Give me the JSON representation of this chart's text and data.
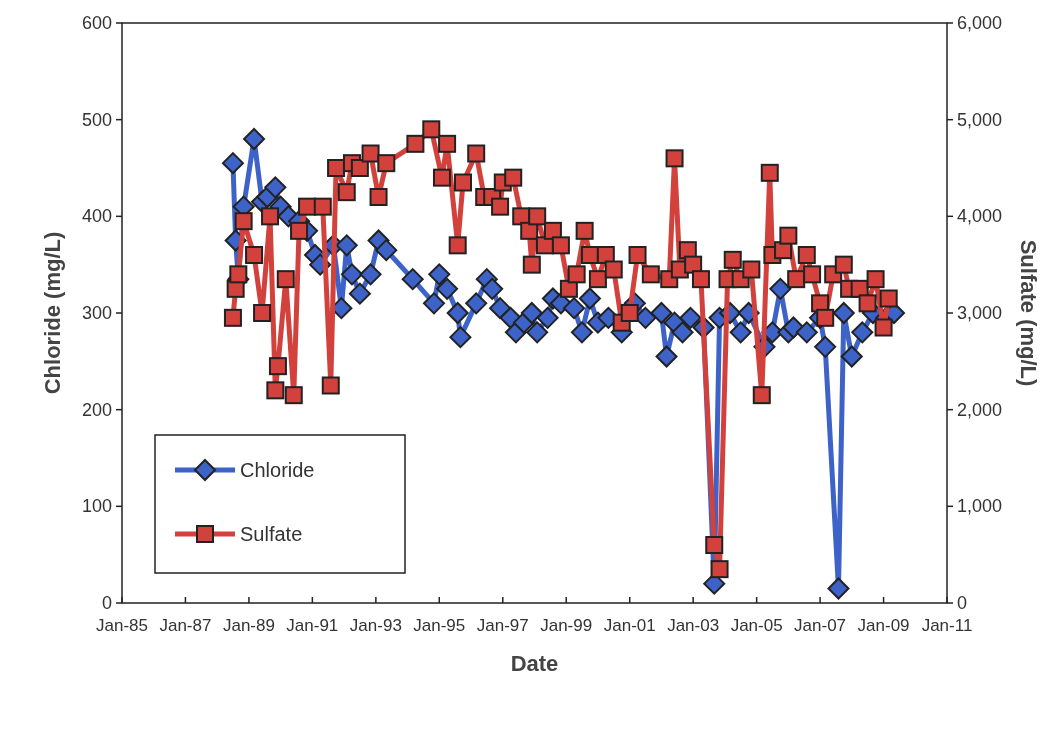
{
  "chart_data": {
    "type": "line",
    "xlabel": "Date",
    "ylabel": "Chloride (mg/L)",
    "y2label": "Sulfate (mg/L)",
    "xlim": [
      "1985-01",
      "2011-01"
    ],
    "xticks": [
      {
        "value": "1985-01",
        "label": "Jan-85"
      },
      {
        "value": "1987-01",
        "label": "Jan-87"
      },
      {
        "value": "1989-01",
        "label": "Jan-89"
      },
      {
        "value": "1991-01",
        "label": "Jan-91"
      },
      {
        "value": "1993-01",
        "label": "Jan-93"
      },
      {
        "value": "1995-01",
        "label": "Jan-95"
      },
      {
        "value": "1997-01",
        "label": "Jan-97"
      },
      {
        "value": "1999-01",
        "label": "Jan-99"
      },
      {
        "value": "2001-01",
        "label": "Jan-01"
      },
      {
        "value": "2003-01",
        "label": "Jan-03"
      },
      {
        "value": "2005-01",
        "label": "Jan-05"
      },
      {
        "value": "2007-01",
        "label": "Jan-07"
      },
      {
        "value": "2009-01",
        "label": "Jan-09"
      },
      {
        "value": "2011-01",
        "label": "Jan-11"
      }
    ],
    "ylim": [
      0,
      600
    ],
    "yticks": [
      0,
      100,
      200,
      300,
      400,
      500,
      600
    ],
    "y2lim": [
      0,
      6000
    ],
    "y2ticks": [
      0,
      {
        "value": 1000,
        "label": "1,000"
      },
      {
        "value": 2000,
        "label": "2,000"
      },
      {
        "value": 3000,
        "label": "3,000"
      },
      {
        "value": 4000,
        "label": "4,000"
      },
      {
        "value": 5000,
        "label": "5,000"
      },
      {
        "value": 6000,
        "label": "6,000"
      }
    ],
    "grid": false,
    "legend": "bottom left",
    "line_style": "solid",
    "series": [
      {
        "name": "Chloride",
        "color": "#3d62c8",
        "marker": "diamond",
        "x": [
          "1988-07",
          "1988-08",
          "1988-09",
          "1988-11",
          "1989-03",
          "1989-06",
          "1989-08",
          "1989-11",
          "1990-01",
          "1990-04",
          "1990-08",
          "1990-11",
          "1991-02",
          "1991-04",
          "1991-09",
          "1991-12",
          "1992-02",
          "1992-04",
          "1992-07",
          "1992-11",
          "1993-02",
          "1993-05",
          "1994-03",
          "1994-11",
          "1995-01",
          "1995-04",
          "1995-08",
          "1995-09",
          "1996-03",
          "1996-07",
          "1996-09",
          "1996-12",
          "1997-04",
          "1997-06",
          "1997-09",
          "1997-12",
          "1998-02",
          "1998-06",
          "1998-08",
          "1998-11",
          "1999-04",
          "1999-07",
          "1999-10",
          "2000-01",
          "2000-05",
          "2000-10",
          "2001-03",
          "2001-07",
          "2002-01",
          "2002-03",
          "2002-06",
          "2002-09",
          "2002-12",
          "2003-05",
          "2003-09",
          "2003-11",
          "2004-03",
          "2004-07",
          "2004-10",
          "2005-04",
          "2005-07",
          "2005-10",
          "2006-01",
          "2006-03",
          "2006-08",
          "2007-01",
          "2007-03",
          "2007-08",
          "2007-10",
          "2008-01",
          "2008-05",
          "2008-09",
          "2009-02",
          "2009-05"
        ],
        "values": [
          455,
          375,
          335,
          410,
          480,
          415,
          420,
          430,
          410,
          400,
          395,
          385,
          360,
          350,
          370,
          305,
          370,
          340,
          320,
          340,
          375,
          365,
          335,
          310,
          340,
          325,
          300,
          275,
          310,
          335,
          325,
          305,
          295,
          280,
          290,
          300,
          280,
          295,
          315,
          310,
          305,
          280,
          315,
          290,
          295,
          280,
          310,
          295,
          300,
          255,
          290,
          280,
          295,
          285,
          20,
          295,
          300,
          280,
          300,
          265,
          280,
          325,
          280,
          285,
          280,
          295,
          265,
          15,
          300,
          255,
          280,
          300,
          295,
          300
        ]
      },
      {
        "name": "Sulfate",
        "color": "#d2413c",
        "marker": "square",
        "axis": "y2",
        "x": [
          "1988-07",
          "1988-08",
          "1988-09",
          "1988-11",
          "1989-03",
          "1989-06",
          "1989-09",
          "1989-11",
          "1989-12",
          "1990-03",
          "1990-06",
          "1990-08",
          "1990-11",
          "1991-05",
          "1991-08",
          "1991-10",
          "1992-02",
          "1992-04",
          "1992-07",
          "1992-11",
          "1993-02",
          "1993-05",
          "1994-04",
          "1994-10",
          "1995-02",
          "1995-04",
          "1995-08",
          "1995-10",
          "1996-03",
          "1996-06",
          "1996-09",
          "1996-12",
          "1997-01",
          "1997-05",
          "1997-08",
          "1997-11",
          "1997-12",
          "1998-02",
          "1998-05",
          "1998-08",
          "1998-11",
          "1999-02",
          "1999-05",
          "1999-08",
          "1999-10",
          "2000-01",
          "2000-04",
          "2000-07",
          "2000-10",
          "2001-01",
          "2001-04",
          "2001-09",
          "2002-04",
          "2002-06",
          "2002-08",
          "2002-11",
          "2003-01",
          "2003-04",
          "2003-09",
          "2003-11",
          "2004-02",
          "2004-04",
          "2004-07",
          "2004-11",
          "2005-03",
          "2005-06",
          "2005-07",
          "2005-11",
          "2006-01",
          "2006-04",
          "2006-08",
          "2006-10",
          "2007-01",
          "2007-03",
          "2007-06",
          "2007-10",
          "2007-12",
          "2008-04",
          "2008-07",
          "2008-10",
          "2009-01",
          "2009-03"
        ],
        "values": [
          2950,
          3250,
          3400,
          3950,
          3600,
          3000,
          4000,
          2200,
          2450,
          3350,
          2150,
          3850,
          4100,
          4100,
          2250,
          4500,
          4250,
          4550,
          4500,
          4650,
          4200,
          4550,
          4750,
          4900,
          4400,
          4750,
          3700,
          4350,
          4650,
          4200,
          4200,
          4100,
          4350,
          4400,
          4000,
          3850,
          3500,
          4000,
          3700,
          3850,
          3700,
          3250,
          3400,
          3850,
          3600,
          3350,
          3600,
          3450,
          2900,
          3000,
          3600,
          3400,
          3350,
          4600,
          3450,
          3650,
          3500,
          3350,
          600,
          350,
          3350,
          3550,
          3350,
          3450,
          2150,
          4450,
          3600,
          3650,
          3800,
          3350,
          3600,
          3400,
          3100,
          2950,
          3400,
          3500,
          3250,
          3250,
          3100,
          3350,
          2850,
          3150
        ]
      }
    ]
  }
}
